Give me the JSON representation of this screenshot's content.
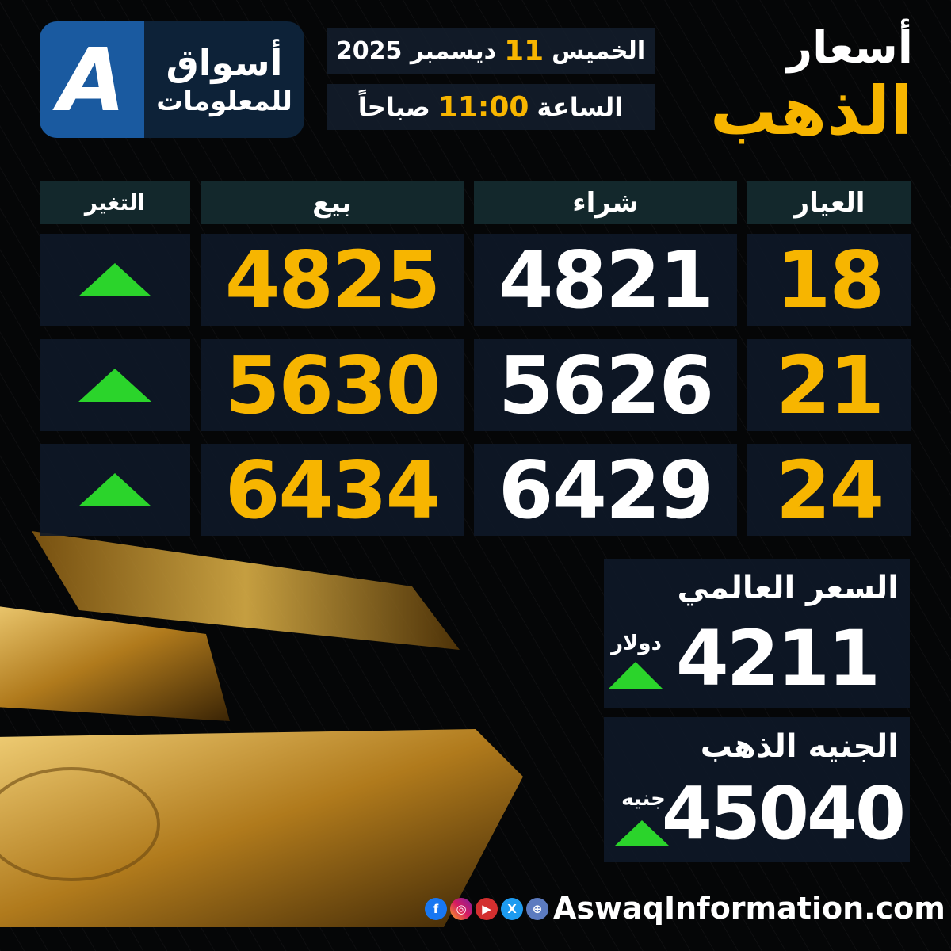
{
  "logo": {
    "line1": "أسواق",
    "line2": "للمعلومات",
    "mark": "A"
  },
  "date": {
    "day": "الخميس",
    "day_num": "11",
    "month_year": "ديسمبر 2025"
  },
  "time": {
    "prefix": "الساعة",
    "value": "11:00",
    "suffix": "صباحاً"
  },
  "title": {
    "line1": "أسعار",
    "line2": "الذهب"
  },
  "table": {
    "headers": {
      "karat": "العيار",
      "buy": "شراء",
      "sell": "بيع",
      "change": "التغير"
    },
    "rows": [
      {
        "karat": "18",
        "buy": "4821",
        "sell": "4825",
        "change": "up"
      },
      {
        "karat": "21",
        "buy": "5626",
        "sell": "5630",
        "change": "up"
      },
      {
        "karat": "24",
        "buy": "6429",
        "sell": "6434",
        "change": "up"
      }
    ]
  },
  "world_price": {
    "label": "السعر العالمي",
    "value": "4211",
    "unit": "دولار",
    "change": "up"
  },
  "gold_pound": {
    "label": "الجنيه الذهب",
    "value": "45040",
    "unit": "جنيه",
    "change": "up"
  },
  "footer": {
    "website": "AswaqInformation.com",
    "social": [
      "facebook-icon",
      "instagram-icon",
      "youtube-icon",
      "x-icon",
      "globe-icon"
    ]
  },
  "colors": {
    "gold": "#f7b500",
    "up": "#2bd42b",
    "brand_blue": "#1a5aa0"
  }
}
